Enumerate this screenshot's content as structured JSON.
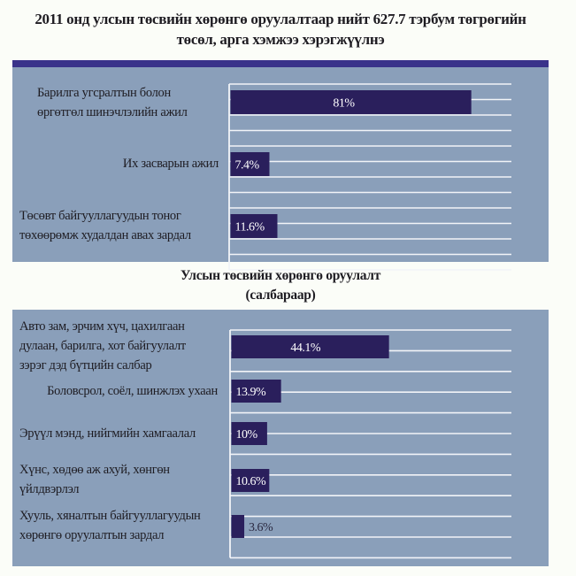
{
  "chart_data": [
    {
      "type": "bar",
      "orientation": "horizontal",
      "title": "2011 онд улсын төсвийн хөрөнгө оруулалтаар нийт 627.7 тэрбум төгрөгийн төсөл, арга хэмжээ хэрэгжүүлнэ",
      "title_lines": [
        "2011 онд улсын төсвийн хөрөнгө оруулалтаар нийт 627.7 тэрбум төгрөгийн",
        "төсөл, арга хэмжээ хэрэгжүүлнэ"
      ],
      "categories": [
        "Барилга угсралтын болон өргөтгөл шинэчлэлийн ажил",
        "Их засварын ажил",
        "Төсөвт байгууллагуудын тоног төхөөрөмж худалдан авах зардал"
      ],
      "category_lines": [
        [
          "Барилга угсралтын болон",
          "өргөтгөл шинэчлэлийн ажил"
        ],
        [
          "Их засварын ажил"
        ],
        [
          "Төсөвт байгууллагуудын тоног",
          "төхөөрөмж худалдан авах зардал"
        ]
      ],
      "values": [
        81,
        7.4,
        11.6
      ],
      "value_labels": [
        "81%",
        "7.4%",
        "11.6%"
      ],
      "unit": "%",
      "xlim": [
        0,
        100
      ],
      "grid": true,
      "xlabel": "",
      "ylabel": ""
    },
    {
      "type": "bar",
      "orientation": "horizontal",
      "title": "Улсын төсвийн хөрөнгө оруулалт (салбараар)",
      "title_lines": [
        "Улсын төсвийн хөрөнгө оруулалт",
        "(салбараар)"
      ],
      "categories": [
        "Авто зам, эрчим хүч, цахилгаан дулаан, барилга, хот байгуулалт зэрэг дэд бүтцийн салбар",
        "Боловсрол, соёл, шинжлэх ухаан",
        "Эрүүл мэнд, нийгмийн хамгаалал",
        "Хүнс, хөдөө аж ахуй, хөнгөн үйлдвэрлэл",
        "Хууль, хяналтын байгууллагуудын хөрөнгө оруулалтын зардал"
      ],
      "category_lines": [
        [
          "Авто зам, эрчим хүч, цахилгаан",
          "дулаан, барилга, хот байгуулалт",
          "зэрэг дэд бүтцийн салбар"
        ],
        [
          "Боловсрол, соёл, шинжлэх ухаан"
        ],
        [
          "Эрүүл мэнд, нийгмийн хамгаалал"
        ],
        [
          "Хүнс, хөдөө аж ахуй, хөнгөн",
          "үйлдвэрлэл"
        ],
        [
          "Хууль, хяналтын байгууллагуудын",
          "хөрөнгө оруулалтын зардал"
        ]
      ],
      "values": [
        44.1,
        13.9,
        10,
        10.6,
        3.6
      ],
      "value_labels": [
        "44.1%",
        "13.9%",
        "10%",
        "10.6%",
        "3.6%"
      ],
      "unit": "%",
      "xlim": [
        0,
        100
      ],
      "grid": true,
      "xlabel": "",
      "ylabel": ""
    }
  ],
  "colors": {
    "page_background": "#fbfdf8",
    "panel_background": "#8a9fba",
    "header_band": "#39328a",
    "bar": "#2a1f5c",
    "gridline": "#f2f4f8",
    "label_inside": "#ffffff",
    "label_outside": "#2a2840"
  }
}
